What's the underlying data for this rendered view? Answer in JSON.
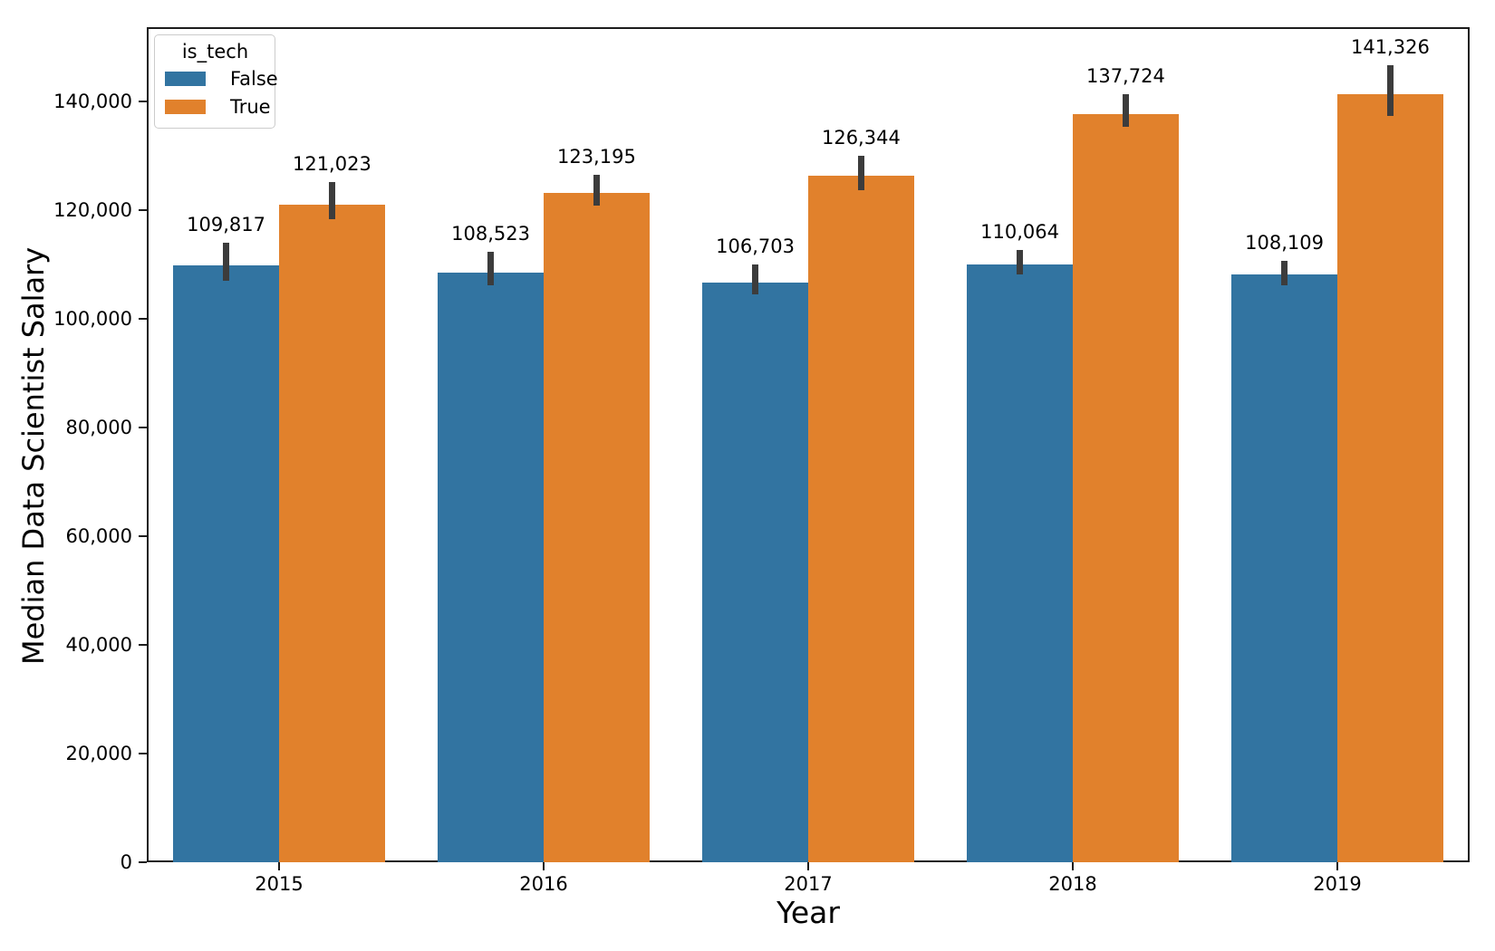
{
  "chart_data": {
    "type": "bar",
    "title": "",
    "xlabel": "Year",
    "ylabel": "Median Data Scientist Salary",
    "categories": [
      "2015",
      "2016",
      "2017",
      "2018",
      "2019"
    ],
    "legend": {
      "title": "is_tech",
      "position": "upper left"
    },
    "series": [
      {
        "name": "False",
        "color": "#3274a1",
        "values": [
          109817,
          108523,
          106703,
          110064,
          108109
        ],
        "value_labels": [
          "109,817",
          "108,523",
          "106,703",
          "110,064",
          "108,109"
        ],
        "error_low": [
          107000,
          106200,
          104500,
          108200,
          106200
        ],
        "error_high": [
          114000,
          112400,
          110000,
          112700,
          110700
        ]
      },
      {
        "name": "True",
        "color": "#e1812c",
        "values": [
          121023,
          123195,
          126344,
          137724,
          141326
        ],
        "value_labels": [
          "121,023",
          "123,195",
          "126,344",
          "137,724",
          "141,326"
        ],
        "error_low": [
          118400,
          120900,
          123700,
          135400,
          137300
        ],
        "error_high": [
          125100,
          126500,
          130000,
          141400,
          146700
        ]
      }
    ],
    "ylim": [
      0,
      153667
    ],
    "yticks": [
      0,
      20000,
      40000,
      60000,
      80000,
      100000,
      120000,
      140000
    ],
    "ytick_labels": [
      "0",
      "20,000",
      "40,000",
      "60,000",
      "80,000",
      "100,000",
      "120,000",
      "140,000"
    ],
    "grid": false,
    "error_bar_color": "#3c3c3c",
    "spine_color": "#1c1c1c",
    "background_color": "#ffffff"
  }
}
